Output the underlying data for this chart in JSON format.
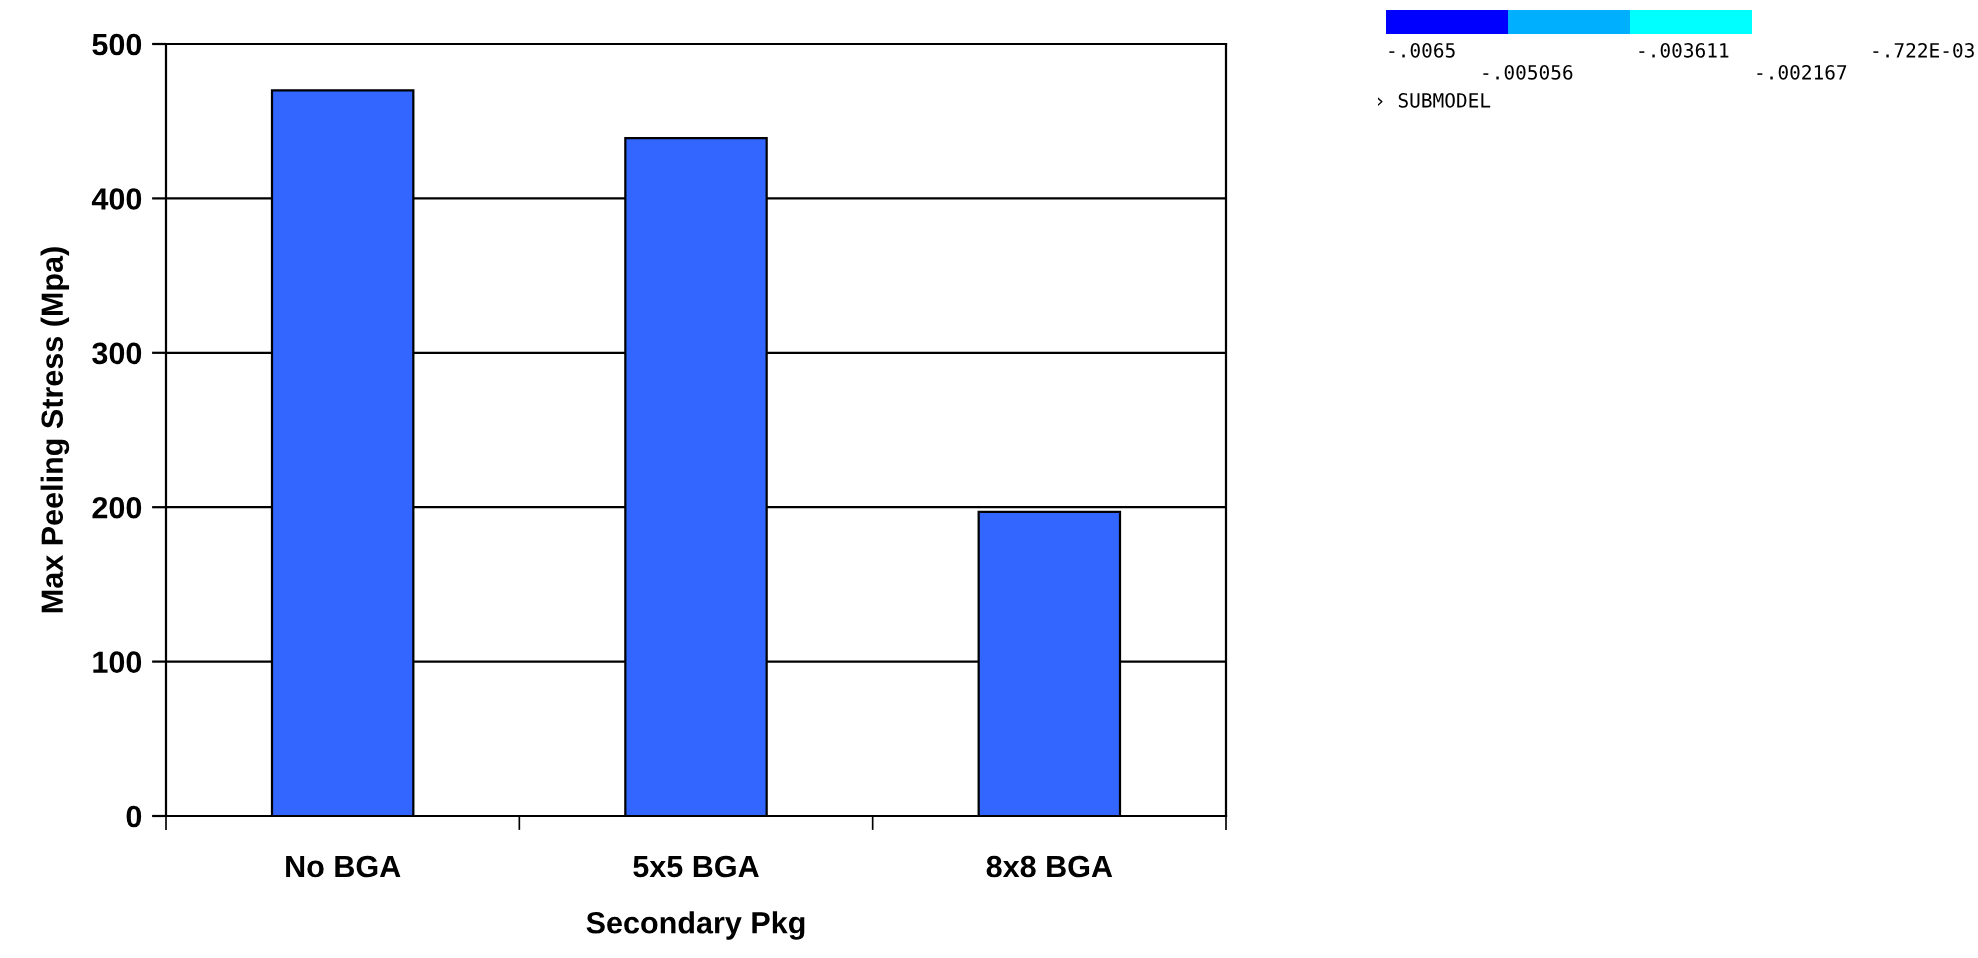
{
  "chart_data": {
    "type": "bar",
    "xlabel": "Secondary Pkg",
    "ylabel": "Max Peeling Stress (Mpa)",
    "categories": [
      "No BGA",
      "5x5 BGA",
      "8x8 BGA"
    ],
    "values": [
      470,
      439,
      197
    ],
    "color": "#3366ff",
    "ylim": [
      0,
      500
    ],
    "yticks": [
      0,
      100,
      200,
      300,
      400,
      500
    ],
    "grid": "y",
    "annotations": [
      "-.0065",
      "-.005056",
      "-.003611",
      "-.002167",
      "-.722E-03",
      "› SUBMODEL"
    ]
  }
}
